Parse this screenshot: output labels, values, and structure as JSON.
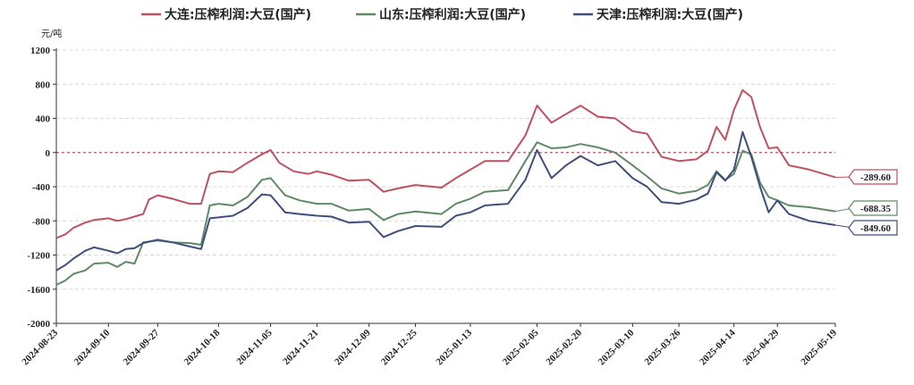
{
  "chart_data": {
    "type": "line",
    "unit_label": "元/吨",
    "ylim": [
      -2000,
      1200
    ],
    "y_ticks": [
      1200,
      800,
      400,
      0,
      -400,
      -800,
      -1200,
      -1600,
      -2000
    ],
    "x_ticks": [
      "2024-08-23",
      "2024-09-10",
      "2024-09-27",
      "2024-10-18",
      "2024-11-05",
      "2024-11-21",
      "2024-12-09",
      "2024-12-25",
      "2025-01-13",
      "2025-02-05",
      "2025-02-20",
      "2025-03-10",
      "2025-03-26",
      "2025-04-14",
      "2025-04-29",
      "2025-05-19"
    ],
    "grid": true,
    "zero_reference_line": true,
    "legend_position": "top-center",
    "series": [
      {
        "name": "大连:压榨利润:大豆(国产)",
        "color": "#c0505f",
        "last_label": "-289.60",
        "values": [
          {
            "x": "2024-08-23",
            "y": -1000
          },
          {
            "x": "2024-08-26",
            "y": -960
          },
          {
            "x": "2024-08-29",
            "y": -880
          },
          {
            "x": "2024-09-02",
            "y": -820
          },
          {
            "x": "2024-09-05",
            "y": -790
          },
          {
            "x": "2024-09-10",
            "y": -770
          },
          {
            "x": "2024-09-13",
            "y": -800
          },
          {
            "x": "2024-09-16",
            "y": -780
          },
          {
            "x": "2024-09-19",
            "y": -750
          },
          {
            "x": "2024-09-22",
            "y": -720
          },
          {
            "x": "2024-09-24",
            "y": -550
          },
          {
            "x": "2024-09-27",
            "y": -500
          },
          {
            "x": "2024-10-02",
            "y": -540
          },
          {
            "x": "2024-10-08",
            "y": -600
          },
          {
            "x": "2024-10-12",
            "y": -600
          },
          {
            "x": "2024-10-15",
            "y": -250
          },
          {
            "x": "2024-10-18",
            "y": -220
          },
          {
            "x": "2024-10-23",
            "y": -230
          },
          {
            "x": "2024-10-28",
            "y": -120
          },
          {
            "x": "2024-11-02",
            "y": -20
          },
          {
            "x": "2024-11-05",
            "y": 30
          },
          {
            "x": "2024-11-08",
            "y": -120
          },
          {
            "x": "2024-11-13",
            "y": -220
          },
          {
            "x": "2024-11-18",
            "y": -250
          },
          {
            "x": "2024-11-21",
            "y": -220
          },
          {
            "x": "2024-11-26",
            "y": -260
          },
          {
            "x": "2024-12-02",
            "y": -330
          },
          {
            "x": "2024-12-09",
            "y": -320
          },
          {
            "x": "2024-12-14",
            "y": -460
          },
          {
            "x": "2024-12-19",
            "y": -420
          },
          {
            "x": "2024-12-25",
            "y": -380
          },
          {
            "x": "2025-01-03",
            "y": -410
          },
          {
            "x": "2025-01-08",
            "y": -300
          },
          {
            "x": "2025-01-13",
            "y": -200
          },
          {
            "x": "2025-01-18",
            "y": -100
          },
          {
            "x": "2025-01-26",
            "y": -100
          },
          {
            "x": "2025-02-01",
            "y": 200
          },
          {
            "x": "2025-02-05",
            "y": 550
          },
          {
            "x": "2025-02-10",
            "y": 350
          },
          {
            "x": "2025-02-15",
            "y": 450
          },
          {
            "x": "2025-02-20",
            "y": 550
          },
          {
            "x": "2025-02-26",
            "y": 420
          },
          {
            "x": "2025-03-04",
            "y": 400
          },
          {
            "x": "2025-03-10",
            "y": 250
          },
          {
            "x": "2025-03-15",
            "y": 220
          },
          {
            "x": "2025-03-20",
            "y": -50
          },
          {
            "x": "2025-03-26",
            "y": -100
          },
          {
            "x": "2025-04-01",
            "y": -80
          },
          {
            "x": "2025-04-05",
            "y": 20
          },
          {
            "x": "2025-04-08",
            "y": 300
          },
          {
            "x": "2025-04-11",
            "y": 150
          },
          {
            "x": "2025-04-14",
            "y": 500
          },
          {
            "x": "2025-04-17",
            "y": 730
          },
          {
            "x": "2025-04-20",
            "y": 650
          },
          {
            "x": "2025-04-23",
            "y": 300
          },
          {
            "x": "2025-04-26",
            "y": 50
          },
          {
            "x": "2025-04-29",
            "y": 60
          },
          {
            "x": "2025-05-03",
            "y": -150
          },
          {
            "x": "2025-05-10",
            "y": -200
          },
          {
            "x": "2025-05-19",
            "y": -289.6
          }
        ]
      },
      {
        "name": "山东:压榨利润:大豆(国产)",
        "color": "#5e8a66",
        "last_label": "-688.35",
        "values": [
          {
            "x": "2024-08-23",
            "y": -1550
          },
          {
            "x": "2024-08-26",
            "y": -1500
          },
          {
            "x": "2024-08-29",
            "y": -1420
          },
          {
            "x": "2024-09-02",
            "y": -1380
          },
          {
            "x": "2024-09-05",
            "y": -1300
          },
          {
            "x": "2024-09-10",
            "y": -1290
          },
          {
            "x": "2024-09-13",
            "y": -1340
          },
          {
            "x": "2024-09-16",
            "y": -1280
          },
          {
            "x": "2024-09-19",
            "y": -1300
          },
          {
            "x": "2024-09-22",
            "y": -1050
          },
          {
            "x": "2024-09-27",
            "y": -1030
          },
          {
            "x": "2024-10-02",
            "y": -1050
          },
          {
            "x": "2024-10-08",
            "y": -1060
          },
          {
            "x": "2024-10-12",
            "y": -1080
          },
          {
            "x": "2024-10-15",
            "y": -620
          },
          {
            "x": "2024-10-18",
            "y": -600
          },
          {
            "x": "2024-10-23",
            "y": -620
          },
          {
            "x": "2024-10-28",
            "y": -520
          },
          {
            "x": "2024-11-02",
            "y": -320
          },
          {
            "x": "2024-11-05",
            "y": -300
          },
          {
            "x": "2024-11-10",
            "y": -500
          },
          {
            "x": "2024-11-15",
            "y": -560
          },
          {
            "x": "2024-11-21",
            "y": -600
          },
          {
            "x": "2024-11-26",
            "y": -600
          },
          {
            "x": "2024-12-02",
            "y": -680
          },
          {
            "x": "2024-12-09",
            "y": -660
          },
          {
            "x": "2024-12-14",
            "y": -790
          },
          {
            "x": "2024-12-19",
            "y": -720
          },
          {
            "x": "2024-12-25",
            "y": -690
          },
          {
            "x": "2025-01-03",
            "y": -720
          },
          {
            "x": "2025-01-08",
            "y": -600
          },
          {
            "x": "2025-01-13",
            "y": -540
          },
          {
            "x": "2025-01-18",
            "y": -460
          },
          {
            "x": "2025-01-26",
            "y": -440
          },
          {
            "x": "2025-02-01",
            "y": -100
          },
          {
            "x": "2025-02-05",
            "y": 120
          },
          {
            "x": "2025-02-10",
            "y": 50
          },
          {
            "x": "2025-02-15",
            "y": 60
          },
          {
            "x": "2025-02-20",
            "y": 100
          },
          {
            "x": "2025-02-26",
            "y": 60
          },
          {
            "x": "2025-03-04",
            "y": 0
          },
          {
            "x": "2025-03-10",
            "y": -150
          },
          {
            "x": "2025-03-15",
            "y": -280
          },
          {
            "x": "2025-03-20",
            "y": -420
          },
          {
            "x": "2025-03-26",
            "y": -480
          },
          {
            "x": "2025-04-01",
            "y": -450
          },
          {
            "x": "2025-04-05",
            "y": -380
          },
          {
            "x": "2025-04-08",
            "y": -220
          },
          {
            "x": "2025-04-11",
            "y": -320
          },
          {
            "x": "2025-04-14",
            "y": -250
          },
          {
            "x": "2025-04-17",
            "y": 20
          },
          {
            "x": "2025-04-20",
            "y": -20
          },
          {
            "x": "2025-04-23",
            "y": -350
          },
          {
            "x": "2025-04-26",
            "y": -520
          },
          {
            "x": "2025-04-29",
            "y": -560
          },
          {
            "x": "2025-05-03",
            "y": -620
          },
          {
            "x": "2025-05-10",
            "y": -640
          },
          {
            "x": "2025-05-19",
            "y": -688.35
          }
        ]
      },
      {
        "name": "天津:压榨利润:大豆(国产)",
        "color": "#3f4f7c",
        "last_label": "-849.60",
        "values": [
          {
            "x": "2024-08-23",
            "y": -1380
          },
          {
            "x": "2024-08-26",
            "y": -1320
          },
          {
            "x": "2024-08-29",
            "y": -1240
          },
          {
            "x": "2024-09-02",
            "y": -1150
          },
          {
            "x": "2024-09-05",
            "y": -1110
          },
          {
            "x": "2024-09-10",
            "y": -1150
          },
          {
            "x": "2024-09-13",
            "y": -1180
          },
          {
            "x": "2024-09-16",
            "y": -1130
          },
          {
            "x": "2024-09-19",
            "y": -1120
          },
          {
            "x": "2024-09-22",
            "y": -1060
          },
          {
            "x": "2024-09-27",
            "y": -1020
          },
          {
            "x": "2024-10-02",
            "y": -1050
          },
          {
            "x": "2024-10-08",
            "y": -1100
          },
          {
            "x": "2024-10-12",
            "y": -1130
          },
          {
            "x": "2024-10-15",
            "y": -770
          },
          {
            "x": "2024-10-18",
            "y": -760
          },
          {
            "x": "2024-10-23",
            "y": -740
          },
          {
            "x": "2024-10-28",
            "y": -650
          },
          {
            "x": "2024-11-02",
            "y": -490
          },
          {
            "x": "2024-11-05",
            "y": -500
          },
          {
            "x": "2024-11-10",
            "y": -700
          },
          {
            "x": "2024-11-15",
            "y": -720
          },
          {
            "x": "2024-11-21",
            "y": -740
          },
          {
            "x": "2024-11-26",
            "y": -750
          },
          {
            "x": "2024-12-02",
            "y": -820
          },
          {
            "x": "2024-12-09",
            "y": -810
          },
          {
            "x": "2024-12-14",
            "y": -990
          },
          {
            "x": "2024-12-19",
            "y": -920
          },
          {
            "x": "2024-12-25",
            "y": -860
          },
          {
            "x": "2025-01-03",
            "y": -870
          },
          {
            "x": "2025-01-08",
            "y": -740
          },
          {
            "x": "2025-01-13",
            "y": -700
          },
          {
            "x": "2025-01-18",
            "y": -620
          },
          {
            "x": "2025-01-26",
            "y": -600
          },
          {
            "x": "2025-02-01",
            "y": -320
          },
          {
            "x": "2025-02-05",
            "y": 30
          },
          {
            "x": "2025-02-10",
            "y": -300
          },
          {
            "x": "2025-02-15",
            "y": -150
          },
          {
            "x": "2025-02-20",
            "y": -40
          },
          {
            "x": "2025-02-26",
            "y": -150
          },
          {
            "x": "2025-03-04",
            "y": -100
          },
          {
            "x": "2025-03-10",
            "y": -300
          },
          {
            "x": "2025-03-15",
            "y": -400
          },
          {
            "x": "2025-03-20",
            "y": -580
          },
          {
            "x": "2025-03-26",
            "y": -600
          },
          {
            "x": "2025-04-01",
            "y": -550
          },
          {
            "x": "2025-04-05",
            "y": -480
          },
          {
            "x": "2025-04-08",
            "y": -230
          },
          {
            "x": "2025-04-11",
            "y": -330
          },
          {
            "x": "2025-04-14",
            "y": -200
          },
          {
            "x": "2025-04-17",
            "y": 240
          },
          {
            "x": "2025-04-20",
            "y": -50
          },
          {
            "x": "2025-04-23",
            "y": -400
          },
          {
            "x": "2025-04-26",
            "y": -700
          },
          {
            "x": "2025-04-29",
            "y": -560
          },
          {
            "x": "2025-05-03",
            "y": -720
          },
          {
            "x": "2025-05-10",
            "y": -800
          },
          {
            "x": "2025-05-19",
            "y": -849.6
          }
        ]
      }
    ]
  }
}
